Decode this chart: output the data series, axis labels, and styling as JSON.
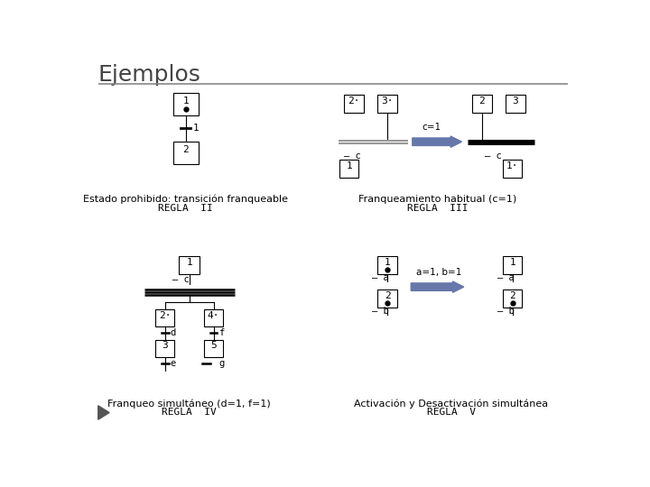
{
  "title": "Ejemplos",
  "title_color": "#444444",
  "bg_color": "#ffffff",
  "box_color": "#000000",
  "arrow_color": "#6677aa",
  "section1_label1": "Estado prohibido: transición franqueable",
  "section1_label2": "REGLA  II",
  "section2_label1": "Franqueamiento habitual (c=1)",
  "section2_label2": "REGLA  III",
  "section3_label1": "Franqueo simultáneo (d=1, f=1)",
  "section3_label2": "REGLA  IV",
  "section4_label1": "Activación y Desactivación simultánea",
  "section4_label2": "REGLA  V",
  "c1_label": "c=1",
  "a1b1_label": "a=1, b=1"
}
